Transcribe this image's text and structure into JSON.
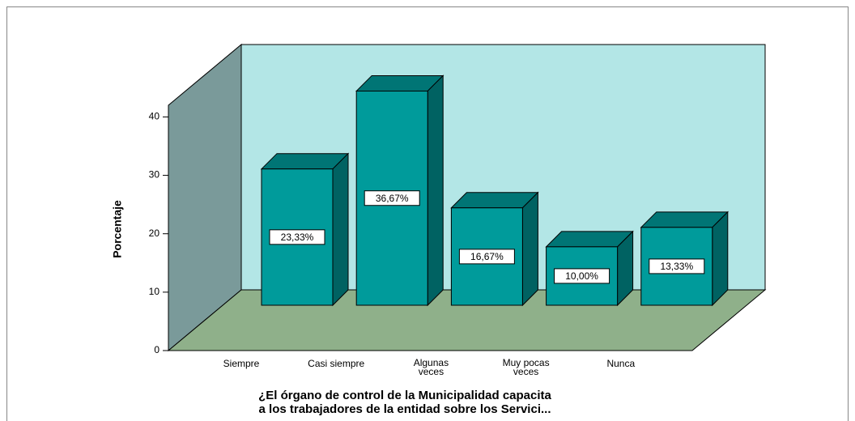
{
  "chart_data": {
    "type": "bar3d",
    "y_label": "Porcentaje",
    "x_label": [
      "¿El órgano de control de la Municipalidad capacita",
      "a los trabajadores de la entidad sobre los Servici..."
    ],
    "categories": [
      "Siempre",
      "Casi siempre",
      "Algunas veces",
      "Muy pocas veces",
      "Nunca"
    ],
    "values": [
      23.33,
      36.67,
      16.67,
      10.0,
      13.33
    ],
    "value_labels": [
      "23,33%",
      "36,67%",
      "16,67%",
      "10,00%",
      "13,33%"
    ],
    "color": "#009b9b",
    "ylim": [
      0,
      42
    ],
    "yticks": [
      0,
      10,
      20,
      30,
      40
    ],
    "grid": false
  }
}
